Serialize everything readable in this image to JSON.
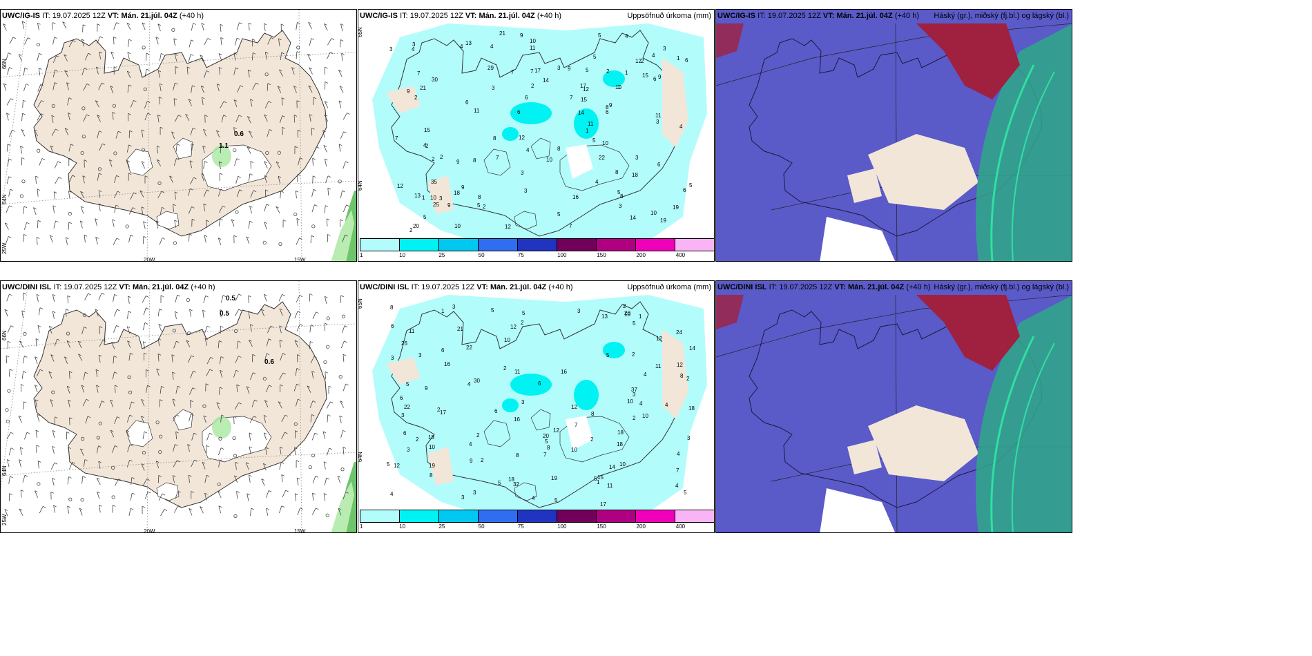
{
  "panels": [
    {
      "model": "UWC/IG-IS",
      "it_label": "IT:",
      "it_value": "19.07.2025 12Z",
      "vt_label": "VT:",
      "vt_value": "Mán. 21.júl. 04Z",
      "lead": "(+40 h)",
      "right_title": "",
      "type": "wind",
      "lon_labels": [
        "20W",
        "15W"
      ],
      "lat_labels": [
        "66N",
        "64N",
        "25W"
      ],
      "values": [
        "0.6",
        "1.1"
      ]
    },
    {
      "model": "UWC/IG-IS",
      "it_label": "IT:",
      "it_value": "19.07.2025 12Z",
      "vt_label": "VT:",
      "vt_value": "Mán. 21.júl. 04Z",
      "lead": "(+40 h)",
      "right_title": "Uppsöfnuð úrkoma (mm)",
      "type": "precip",
      "lat_labels": [
        "65N",
        "64N"
      ],
      "values": [
        "4",
        "2",
        "3",
        "2",
        "7",
        "9",
        "10",
        "5",
        "3",
        "6",
        "7",
        "5",
        "8",
        "10",
        "8",
        "6",
        "4",
        "18",
        "20",
        "7",
        "10",
        "9",
        "12",
        "15",
        "35",
        "17",
        "11",
        "11",
        "21",
        "13",
        "16",
        "14",
        "12",
        "29",
        "21",
        "17",
        "25",
        "14",
        "9",
        "7",
        "22",
        "30",
        "12",
        "12",
        "8",
        "3",
        "18",
        "11",
        "15",
        "14",
        "2",
        "3",
        "7",
        "6",
        "11",
        "19",
        "13",
        "8",
        "9",
        "5",
        "12",
        "10",
        "15",
        "2",
        "3",
        "2",
        "8",
        "9",
        "6",
        "4",
        "5",
        "7",
        "8",
        "2",
        "1",
        "3",
        "4",
        "1",
        "3",
        "4",
        "10",
        "7",
        "5",
        "5",
        "10",
        "19",
        "6",
        "5",
        "3",
        "6",
        "8",
        "9",
        "2",
        "3",
        "4",
        "9",
        "5",
        "4",
        "2",
        "6",
        "1",
        "4",
        "1",
        "5",
        "9",
        "3",
        "2",
        "6",
        "4",
        "10",
        "3",
        "1"
      ]
    },
    {
      "model": "UWC/IG-IS",
      "it_label": "IT:",
      "it_value": "19.07.2025 12Z",
      "vt_label": "VT:",
      "vt_value": "Mán. 21.júl. 04Z",
      "lead": "(+40 h)",
      "right_title": "Háský (gr.), miðský (fj.bl.) og lágský (bl.)",
      "type": "cloud"
    },
    {
      "model": "UWC/DINI ISL",
      "it_label": "IT:",
      "it_value": "19.07.2025 12Z",
      "vt_label": "VT:",
      "vt_value": "Mán. 21.júl. 04Z",
      "lead": "(+40 h)",
      "right_title": "",
      "type": "wind",
      "lon_labels": [
        "20W",
        "15W"
      ],
      "lat_labels": [
        "66N",
        "64N",
        "25W"
      ],
      "values": [
        "0.5",
        "0.5",
        "0.6"
      ]
    },
    {
      "model": "UWC/DINI ISL",
      "it_label": "IT:",
      "it_value": "19.07.2025 12Z",
      "vt_label": "VT:",
      "vt_value": "Mán. 21.júl. 04Z",
      "lead": "(+40 h)",
      "right_title": "Uppsöfnuð úrkoma (mm)",
      "type": "precip",
      "lat_labels": [
        "65N",
        "64N"
      ],
      "values": [
        "2",
        "4",
        "8",
        "2",
        "3",
        "4",
        "3",
        "2",
        "3",
        "24",
        "22",
        "18",
        "18",
        "21",
        "26",
        "5",
        "7",
        "3",
        "4",
        "5",
        "6",
        "9",
        "5",
        "5",
        "8",
        "11",
        "9",
        "3",
        "8",
        "10",
        "12",
        "16",
        "18",
        "22",
        "32",
        "17",
        "11",
        "2",
        "6",
        "10",
        "10",
        "10",
        "10",
        "12",
        "14",
        "15",
        "19",
        "37",
        "5",
        "4",
        "12",
        "16",
        "12",
        "14",
        "11",
        "17",
        "20",
        "18",
        "11",
        "30",
        "8",
        "2",
        "2",
        "3",
        "20",
        "19",
        "13",
        "10",
        "12",
        "10",
        "5",
        "4",
        "3",
        "2",
        "5",
        "16",
        "8",
        "18",
        "12",
        "7",
        "2",
        "3",
        "1",
        "8",
        "6",
        "5",
        "4",
        "6",
        "5",
        "4",
        "6",
        "5",
        "7",
        "6",
        "5",
        "1",
        "3",
        "4",
        "2",
        "3",
        "4",
        "2",
        "2",
        "1",
        "3"
      ]
    },
    {
      "model": "UWC/DINI ISL",
      "it_label": "IT:",
      "it_value": "19.07.2025 12Z",
      "vt_label": "VT:",
      "vt_value": "Mán. 21.júl. 04Z",
      "lead": "(+40 h)",
      "right_title": "Háský (gr.), miðský (fj.bl.) og lágský (bl.)",
      "type": "cloud"
    }
  ],
  "legend": {
    "colors": [
      "#b3fcfc",
      "#00f2f2",
      "#00c8f0",
      "#2f6ef0",
      "#2034c0",
      "#70005a",
      "#b00082",
      "#f000b8",
      "#f8b4f4"
    ],
    "ticks": [
      "1",
      "10",
      "25",
      "50",
      "75",
      "100",
      "150",
      "200",
      "400"
    ]
  },
  "colors": {
    "land": "#f2e6d9",
    "precip_light": "#b3fcfc",
    "precip_mid": "#00f2f2",
    "cloud_blue": "#5a5ac8",
    "cloud_green": "#2fa888",
    "cloud_red": "#a02040"
  }
}
